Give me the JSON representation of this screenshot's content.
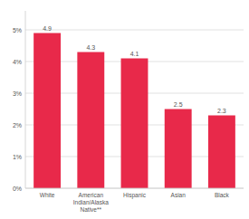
{
  "chart_data": {
    "type": "bar",
    "categories": [
      "White",
      "American\nIndian/Alaska\nNative**",
      "Hispanic",
      "Asian",
      "Black"
    ],
    "values": [
      4.9,
      4.3,
      4.1,
      2.5,
      2.3
    ],
    "color": "#e8294a",
    "ylim": [
      0,
      5.6
    ],
    "yticks": [
      {
        "value": 0,
        "label": "0%"
      },
      {
        "value": 1,
        "label": "1%"
      },
      {
        "value": 2,
        "label": "2%"
      },
      {
        "value": 3,
        "label": "3%"
      },
      {
        "value": 4,
        "label": "4%"
      },
      {
        "value": 5,
        "label": "5%"
      }
    ],
    "grid": true,
    "data_labels": true
  }
}
